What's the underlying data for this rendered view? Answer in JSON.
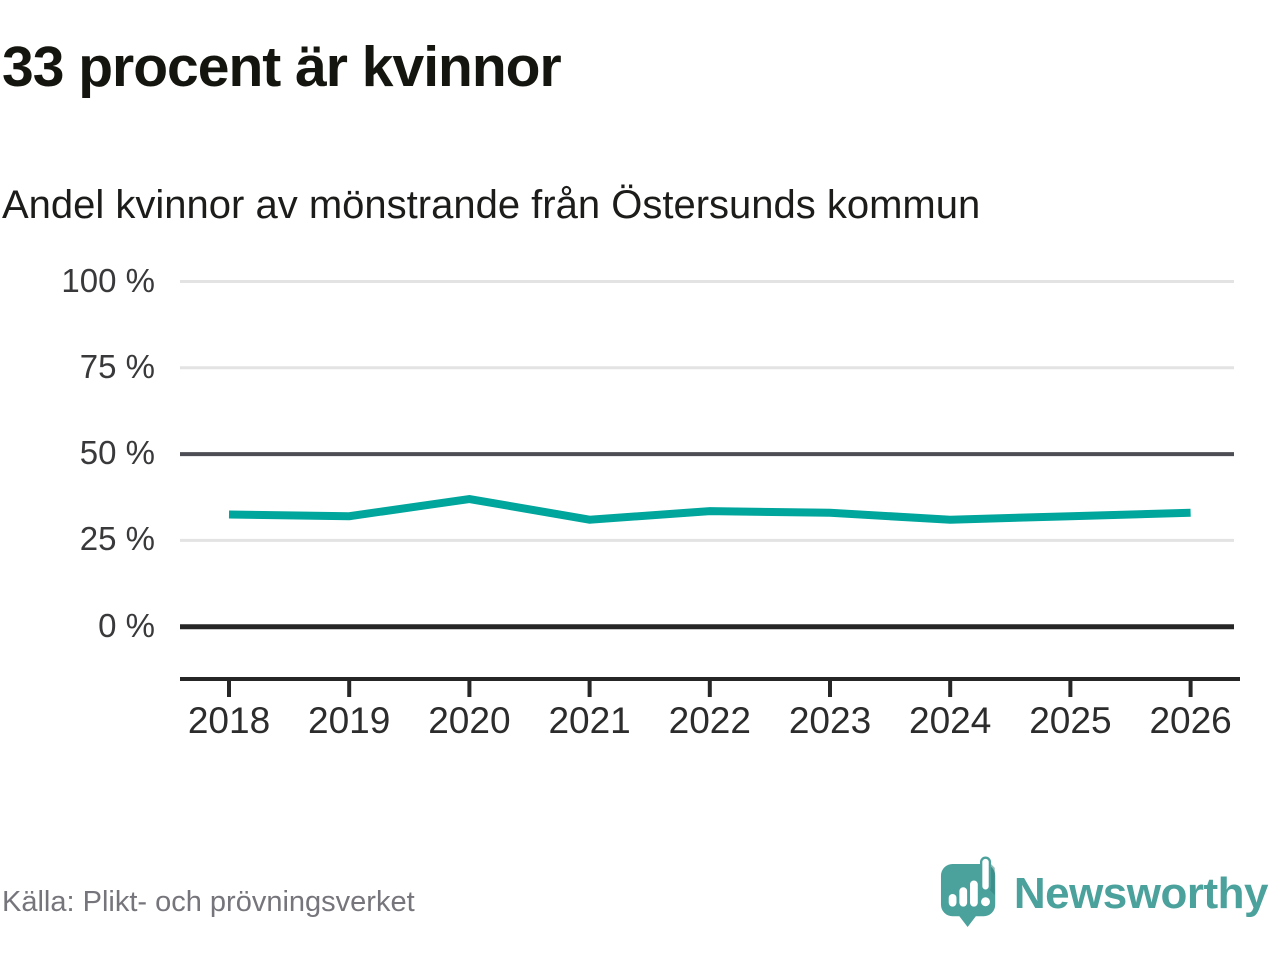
{
  "header": {
    "title": "33 procent är kvinnor",
    "subtitle": "Andel kvinnor av mönstrande från Östersunds kommun"
  },
  "footer": {
    "source": "Källa: Plikt- och prövningsverket",
    "brand": "Newsworthy"
  },
  "colors": {
    "line": "#00a59c",
    "brand_teal": "#4ba19c",
    "brand_teal_dark": "#35817e",
    "grid_light": "#e3e3e3",
    "grid_mid": "#4d4d55",
    "axis_dark": "#262626"
  },
  "chart_data": {
    "type": "line",
    "x": [
      2018,
      2019,
      2020,
      2021,
      2022,
      2023,
      2024,
      2025,
      2026
    ],
    "series": [
      {
        "name": "Andel kvinnor av mönstrande",
        "values": [
          32.5,
          32,
          37,
          31,
          33.5,
          33,
          31,
          32,
          33
        ]
      }
    ],
    "title": "33 procent är kvinnor",
    "subtitle": "Andel kvinnor av mönstrande från Östersunds kommun",
    "xlabel": "",
    "ylabel": "",
    "ylim": [
      0,
      100
    ],
    "yticks": [
      0,
      25,
      50,
      75,
      100
    ],
    "ytick_suffix": " %",
    "grid": "horizontal-only",
    "legend": "none",
    "line_color": "#00a59c"
  }
}
